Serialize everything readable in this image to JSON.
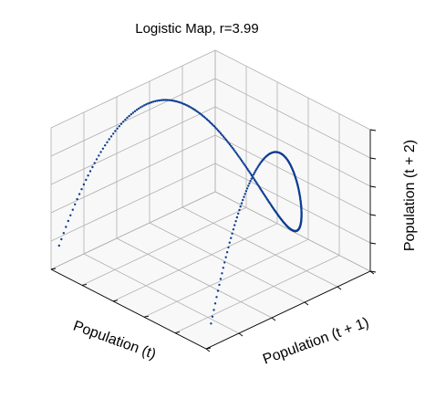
{
  "chart_data": {
    "type": "scatter",
    "projection": "3d",
    "title": "Logistic Map, r=3.99",
    "xlabel": "Population (t)",
    "ylabel": "Population (t + 1)",
    "zlabel": "Population (t + 2)",
    "r": 3.99,
    "xlim": [
      0,
      1
    ],
    "ylim": [
      0,
      1
    ],
    "zlim": [
      0,
      1
    ],
    "grid": true,
    "tick_labels_shown": false,
    "series": [
      {
        "x_range": [
          0.01,
          0.99
        ],
        "y_rule": "r * x * (1 - x)",
        "z_rule": "r * y * (1 - y)",
        "point_count": 340,
        "color": "#0b3d91"
      }
    ]
  }
}
